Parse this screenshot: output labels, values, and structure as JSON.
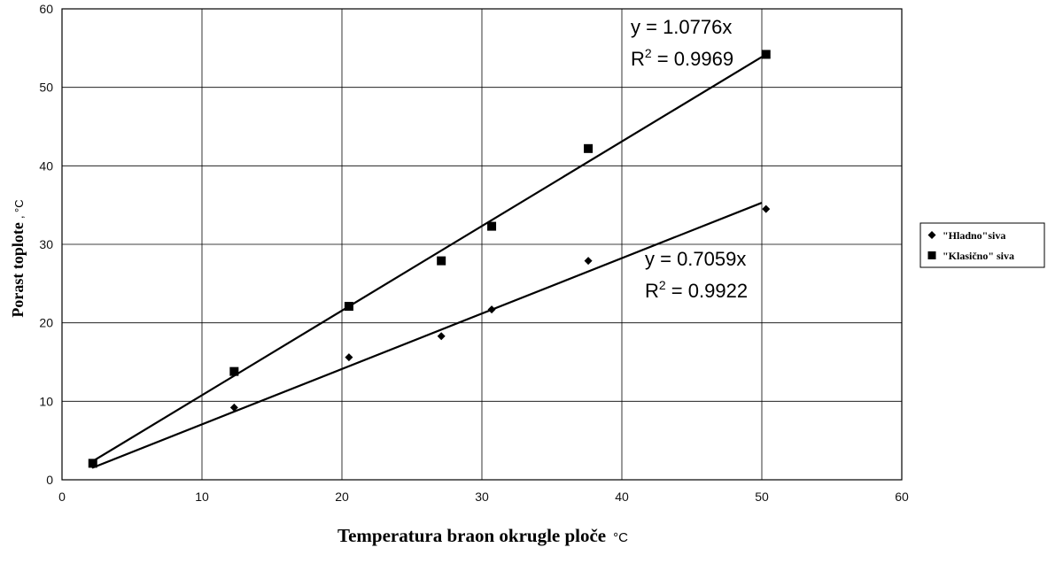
{
  "chart_data": {
    "type": "scatter",
    "xlabel": "Temperatura braon okrugle ploče",
    "xunit": "°C",
    "ylabel": "Porast toplote",
    "yunit": ", °C",
    "xlim": [
      0,
      60
    ],
    "ylim": [
      0,
      60
    ],
    "xticks": [
      "0",
      "10",
      "20",
      "30",
      "40",
      "50",
      "60"
    ],
    "yticks": [
      "0",
      "10",
      "20",
      "30",
      "40",
      "50",
      "60"
    ],
    "grid": true,
    "legend_position": "right",
    "series": [
      {
        "name": "\"Hladno\"siva",
        "marker": "diamond",
        "color": "#000000",
        "x": [
          2.2,
          12.3,
          20.5,
          27.1,
          30.7,
          37.6,
          50.3
        ],
        "y": [
          1.9,
          9.2,
          15.6,
          18.3,
          21.7,
          27.9,
          34.5
        ],
        "trendline": {
          "slope": 0.7059,
          "x_range": [
            2.2,
            50.0
          ]
        },
        "equation": "y = 0.7059x",
        "r2_label": "R",
        "r2_exp": "2",
        "r2_value": " = 0.9922"
      },
      {
        "name": "\"Klasično\" siva",
        "marker": "square",
        "color": "#000000",
        "x": [
          2.2,
          12.3,
          20.5,
          27.1,
          30.7,
          37.6,
          50.3
        ],
        "y": [
          2.1,
          13.8,
          22.1,
          27.9,
          32.3,
          42.2,
          54.2
        ],
        "trendline": {
          "slope": 1.0776,
          "x_range": [
            2.2,
            50.0
          ]
        },
        "equation": "y = 1.0776x",
        "r2_label": "R",
        "r2_exp": "2",
        "r2_value": " = 0.9969"
      }
    ]
  }
}
